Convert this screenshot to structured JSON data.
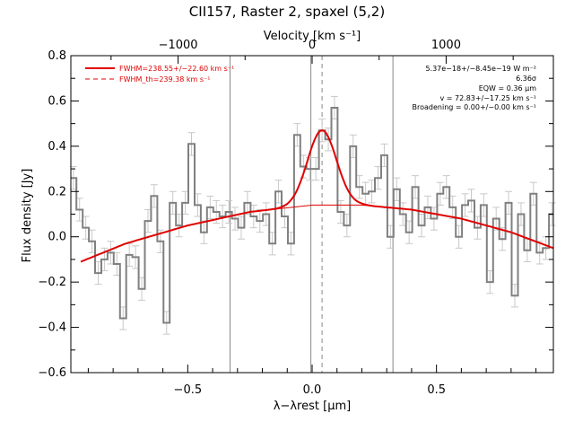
{
  "chart_data": {
    "type": "line",
    "title": "CII157, Raster 2, spaxel (5,2)",
    "xlabel": "λ−λrest [μm]",
    "ylabel": "Flux density [Jy]",
    "top_xlabel": "Velocity [km s⁻¹]",
    "xlim": [
      -0.97,
      0.97
    ],
    "ylim": [
      -0.6,
      0.8
    ],
    "top_xlim": [
      -1800,
      1800
    ],
    "x_ticks": [
      -0.5,
      0.0,
      0.5
    ],
    "x_tick_labels": [
      "−0.5",
      "0.0",
      "0.5"
    ],
    "y_ticks": [
      -0.6,
      -0.4,
      -0.2,
      0.0,
      0.2,
      0.4,
      0.6,
      0.8
    ],
    "y_tick_labels": [
      "−0.6",
      "−0.4",
      "−0.2",
      "0.0",
      "0.2",
      "0.4",
      "0.6",
      "0.8"
    ],
    "top_ticks": [
      -1000,
      0,
      1000
    ],
    "top_tick_labels": [
      "−1000",
      "0",
      "1000"
    ],
    "vertical_lines": [
      -0.33,
      -0.005,
      0.325
    ],
    "dashed_line_x": 0.04,
    "legend": [
      {
        "label": "FWHM=238.55+/−22.60 km s⁻¹",
        "style": "solid"
      },
      {
        "label": "FWHM_th=239.38 km s⁻¹",
        "style": "dashed"
      }
    ],
    "annotations": [
      "5.37e−18+/−8.45e−19 W m⁻²",
      "6.36σ",
      "EQW = 0.36 μm",
      "v = 72.83+/−17.25 km s⁻¹",
      "Broadening = 0.00+/−0.00 km s⁻¹"
    ],
    "spectrum": {
      "name": "data",
      "color": "#808080",
      "x": [
        -0.96,
        -0.935,
        -0.91,
        -0.885,
        -0.86,
        -0.835,
        -0.81,
        -0.785,
        -0.76,
        -0.735,
        -0.71,
        -0.685,
        -0.66,
        -0.635,
        -0.61,
        -0.585,
        -0.56,
        -0.535,
        -0.51,
        -0.485,
        -0.46,
        -0.435,
        -0.41,
        -0.385,
        -0.36,
        -0.335,
        -0.31,
        -0.285,
        -0.26,
        -0.235,
        -0.21,
        -0.185,
        -0.16,
        -0.135,
        -0.11,
        -0.085,
        -0.06,
        -0.035,
        -0.01,
        0.015,
        0.04,
        0.065,
        0.09,
        0.115,
        0.14,
        0.165,
        0.19,
        0.215,
        0.24,
        0.265,
        0.29,
        0.315,
        0.34,
        0.365,
        0.39,
        0.415,
        0.44,
        0.465,
        0.49,
        0.515,
        0.54,
        0.565,
        0.59,
        0.615,
        0.64,
        0.665,
        0.69,
        0.715,
        0.74,
        0.765,
        0.79,
        0.815,
        0.84,
        0.865,
        0.89,
        0.915,
        0.94,
        0.965
      ],
      "y": [
        0.26,
        0.12,
        0.04,
        -0.02,
        -0.16,
        -0.1,
        -0.07,
        -0.12,
        -0.36,
        -0.08,
        -0.09,
        -0.23,
        0.07,
        0.18,
        -0.02,
        -0.38,
        0.15,
        0.05,
        0.15,
        0.41,
        0.14,
        0.02,
        0.13,
        0.11,
        0.09,
        0.11,
        0.08,
        0.04,
        0.15,
        0.09,
        0.07,
        0.1,
        -0.03,
        0.2,
        0.09,
        -0.03,
        0.45,
        0.31,
        0.3,
        0.3,
        0.47,
        0.43,
        0.57,
        0.11,
        0.05,
        0.4,
        0.22,
        0.19,
        0.2,
        0.26,
        0.36,
        0.0,
        0.21,
        0.1,
        0.02,
        0.22,
        0.05,
        0.13,
        0.08,
        0.19,
        0.22,
        0.13,
        0.0,
        0.14,
        0.16,
        0.04,
        0.14,
        -0.2,
        0.08,
        -0.01,
        0.15,
        -0.26,
        0.1,
        -0.06,
        0.19,
        -0.07,
        -0.05,
        0.1
      ],
      "error": 0.05
    },
    "fit": {
      "name": "fit",
      "color": "#e00000",
      "continuum_x": [
        -0.93,
        -0.75,
        -0.5,
        -0.25,
        0.0,
        0.1,
        0.2,
        0.4,
        0.6,
        0.8,
        0.97
      ],
      "continuum_y": [
        -0.11,
        -0.03,
        0.05,
        0.11,
        0.14,
        0.14,
        0.14,
        0.12,
        0.08,
        0.02,
        -0.05
      ],
      "gaussian_center": 0.04,
      "gaussian_amplitude": 0.33,
      "gaussian_sigma": 0.058
    }
  }
}
